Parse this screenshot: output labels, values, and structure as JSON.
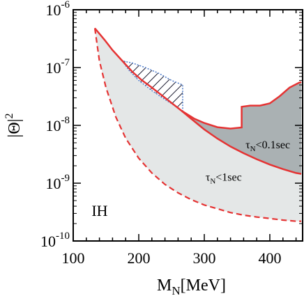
{
  "chart_data": {
    "type": "area",
    "xlabel": {
      "main": "M",
      "sub": "N",
      "rest": "[MeV]"
    },
    "ylabel": {
      "pre": "|Θ|",
      "sup": "2"
    },
    "xlim": [
      100,
      450
    ],
    "ylim_log10": [
      -10,
      -6
    ],
    "y_scale": "log",
    "x_ticks": [
      "100",
      "200",
      "300",
      "400"
    ],
    "y_ticks": [
      {
        "exp": -10,
        "base": "10",
        "sup": "-10"
      },
      {
        "exp": -9,
        "base": "10",
        "sup": "-9"
      },
      {
        "exp": -8,
        "base": "10",
        "sup": "-8"
      },
      {
        "exp": -7,
        "base": "10",
        "sup": "-7"
      },
      {
        "exp": -6,
        "base": "10",
        "sup": "-6"
      }
    ],
    "colors": {
      "light_region": "#e4e7e7",
      "dark_region": "#aab1b3",
      "boundary": "#e53333",
      "hatch": "#1a1a2e",
      "hatch_border": "#4a78c8"
    },
    "series": [
      {
        "label": "upper_boundary",
        "x": [
          133,
          148,
          160,
          175,
          190,
          205,
          220,
          240,
          265,
          280,
          300,
          320,
          340,
          360,
          380,
          400,
          420,
          440,
          448
        ],
        "y": [
          4.8e-07,
          3e-07,
          2e-07,
          1.3e-07,
          8.5e-08,
          6e-08,
          4.5e-08,
          3e-08,
          1.8e-08,
          1.3e-08,
          8.5e-09,
          5.9e-09,
          4.3e-09,
          3.3e-09,
          2.6e-09,
          2.1e-09,
          1.75e-09,
          1.5e-09,
          1.45e-09
        ]
      },
      {
        "label": "lower_boundary_dashed",
        "x": [
          133,
          140,
          150,
          165,
          180,
          200,
          220,
          240,
          260,
          280,
          300,
          320,
          340,
          360,
          380,
          400,
          420,
          440,
          448
        ],
        "y": [
          4.8e-07,
          1.3e-07,
          4.5e-08,
          1.4e-08,
          6e-09,
          2.7e-09,
          1.5e-09,
          9.5e-10,
          6.8e-10,
          5.2e-10,
          4.2e-10,
          3.6e-10,
          3.1e-10,
          2.8e-10,
          2.6e-10,
          2.45e-10,
          2.3e-10,
          2.2e-10,
          2.2e-10
        ]
      },
      {
        "label": "upper_dark_boundary",
        "x": [
          265,
          285,
          300,
          320,
          340,
          357,
          357,
          370,
          385,
          400,
          415,
          430,
          445,
          448
        ],
        "y": [
          1.8e-08,
          1.3e-08,
          1.1e-08,
          9.3e-09,
          8.8e-09,
          9.2e-09,
          2.1e-08,
          2.2e-08,
          2.2e-08,
          2.4e-08,
          3.2e-08,
          4.5e-08,
          5.5e-08,
          5.6e-08
        ]
      },
      {
        "label": "hatched_region",
        "x": [
          175,
          185,
          200,
          220,
          240,
          255,
          265,
          267,
          267,
          250,
          230,
          210,
          190,
          175
        ],
        "y": [
          1.3e-07,
          9e-08,
          6e-08,
          4e-08,
          2.8e-08,
          2.2e-08,
          1.8e-08,
          1.8e-08,
          5e-08,
          6e-08,
          8e-08,
          1e-07,
          1.2e-07,
          1.3e-07
        ]
      }
    ],
    "annotations": [
      {
        "label_main": "τ",
        "label_sub": "N",
        "label_rest": "<0.1sec",
        "x": 363,
        "y": 4e-09
      },
      {
        "label_main": "τ",
        "label_sub": "N",
        "label_rest": "<1sec",
        "x": 302,
        "y": 1.1e-09
      },
      {
        "label_main": "IH",
        "x": 128,
        "y": 2.7e-10
      }
    ]
  }
}
